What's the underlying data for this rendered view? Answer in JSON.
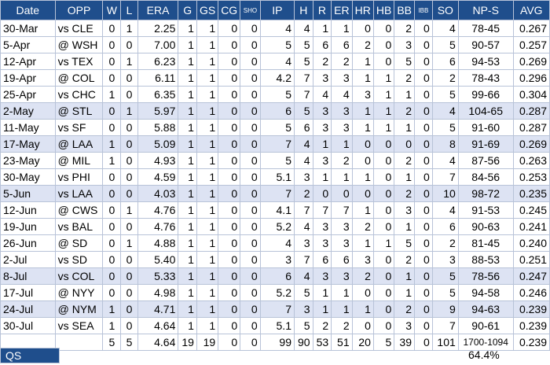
{
  "headers": [
    "Date",
    "OPP",
    "W",
    "L",
    "ERA",
    "G",
    "GS",
    "CG",
    "SHO",
    "IP",
    "H",
    "R",
    "ER",
    "HR",
    "HB",
    "BB",
    "IBB",
    "SO",
    "NP-S",
    "AVG"
  ],
  "rows": [
    {
      "hl": false,
      "cells": [
        "30-Mar",
        "vs CLE",
        "0",
        "1",
        "2.25",
        "1",
        "1",
        "0",
        "0",
        "4",
        "4",
        "1",
        "1",
        "0",
        "0",
        "2",
        "0",
        "4",
        "78-45",
        "0.267"
      ]
    },
    {
      "hl": false,
      "cells": [
        "5-Apr",
        "@ WSH",
        "0",
        "0",
        "7.00",
        "1",
        "1",
        "0",
        "0",
        "5",
        "5",
        "6",
        "2",
        "0",
        "3",
        "0",
        "5",
        "90-57",
        "0.257"
      ],
      "skip": 14
    },
    {
      "hl": false,
      "cells": [
        "12-Apr",
        "vs TEX",
        "0",
        "1",
        "6.23",
        "1",
        "1",
        "0",
        "0",
        "4",
        "5",
        "2",
        "2",
        "1",
        "0",
        "5",
        "0",
        "6",
        "94-53",
        "0.269"
      ]
    },
    {
      "hl": false,
      "cells": [
        "19-Apr",
        "@ COL",
        "0",
        "0",
        "6.11",
        "1",
        "1",
        "0",
        "0",
        "4.2",
        "7",
        "3",
        "3",
        "1",
        "1",
        "2",
        "0",
        "2",
        "78-43",
        "0.296"
      ]
    },
    {
      "hl": false,
      "cells": [
        "25-Apr",
        "vs CHC",
        "1",
        "0",
        "6.35",
        "1",
        "1",
        "0",
        "0",
        "5",
        "7",
        "4",
        "4",
        "3",
        "1",
        "1",
        "0",
        "5",
        "99-66",
        "0.304"
      ]
    },
    {
      "hl": true,
      "cells": [
        "2-May",
        "@ STL",
        "0",
        "1",
        "5.97",
        "1",
        "1",
        "0",
        "0",
        "6",
        "5",
        "3",
        "3",
        "1",
        "1",
        "2",
        "0",
        "4",
        "104-65",
        "0.287"
      ]
    },
    {
      "hl": false,
      "cells": [
        "11-May",
        "vs SF",
        "0",
        "0",
        "5.88",
        "1",
        "1",
        "0",
        "0",
        "5",
        "6",
        "3",
        "3",
        "1",
        "1",
        "1",
        "0",
        "5",
        "91-60",
        "0.287"
      ]
    },
    {
      "hl": true,
      "cells": [
        "17-May",
        "@ LAA",
        "1",
        "0",
        "5.09",
        "1",
        "1",
        "0",
        "0",
        "7",
        "4",
        "1",
        "1",
        "0",
        "0",
        "0",
        "0",
        "8",
        "91-69",
        "0.269"
      ]
    },
    {
      "hl": false,
      "cells": [
        "23-May",
        "@ MIL",
        "1",
        "0",
        "4.93",
        "1",
        "1",
        "0",
        "0",
        "5",
        "4",
        "3",
        "2",
        "0",
        "0",
        "2",
        "0",
        "4",
        "87-56",
        "0.263"
      ]
    },
    {
      "hl": false,
      "cells": [
        "30-May",
        "vs PHI",
        "0",
        "0",
        "4.59",
        "1",
        "1",
        "0",
        "0",
        "5.1",
        "3",
        "1",
        "1",
        "1",
        "0",
        "1",
        "0",
        "7",
        "84-56",
        "0.253"
      ]
    },
    {
      "hl": true,
      "cells": [
        "5-Jun",
        "vs LAA",
        "0",
        "0",
        "4.03",
        "1",
        "1",
        "0",
        "0",
        "7",
        "2",
        "0",
        "0",
        "0",
        "0",
        "2",
        "0",
        "10",
        "98-72",
        "0.235"
      ]
    },
    {
      "hl": false,
      "cells": [
        "12-Jun",
        "@ CWS",
        "0",
        "1",
        "4.76",
        "1",
        "1",
        "0",
        "0",
        "4.1",
        "7",
        "7",
        "7",
        "1",
        "0",
        "3",
        "0",
        "4",
        "91-53",
        "0.245"
      ]
    },
    {
      "hl": false,
      "cells": [
        "19-Jun",
        "vs BAL",
        "0",
        "0",
        "4.76",
        "1",
        "1",
        "0",
        "0",
        "5.2",
        "4",
        "3",
        "3",
        "2",
        "0",
        "1",
        "0",
        "6",
        "90-63",
        "0.241"
      ]
    },
    {
      "hl": false,
      "cells": [
        "26-Jun",
        "@ SD",
        "0",
        "1",
        "4.88",
        "1",
        "1",
        "0",
        "0",
        "4",
        "3",
        "3",
        "3",
        "1",
        "1",
        "5",
        "0",
        "2",
        "81-45",
        "0.240"
      ]
    },
    {
      "hl": false,
      "cells": [
        "2-Jul",
        "vs SD",
        "0",
        "0",
        "5.40",
        "1",
        "1",
        "0",
        "0",
        "3",
        "7",
        "6",
        "6",
        "3",
        "0",
        "2",
        "0",
        "3",
        "88-53",
        "0.251"
      ]
    },
    {
      "hl": true,
      "cells": [
        "8-Jul",
        "vs COL",
        "0",
        "0",
        "5.33",
        "1",
        "1",
        "0",
        "0",
        "6",
        "4",
        "3",
        "3",
        "2",
        "0",
        "1",
        "0",
        "5",
        "78-56",
        "0.247"
      ]
    },
    {
      "hl": false,
      "cells": [
        "17-Jul",
        "@ NYY",
        "0",
        "0",
        "4.98",
        "1",
        "1",
        "0",
        "0",
        "5.2",
        "5",
        "1",
        "1",
        "0",
        "0",
        "1",
        "0",
        "5",
        "94-58",
        "0.246"
      ]
    },
    {
      "hl": true,
      "cells": [
        "24-Jul",
        "@ NYM",
        "1",
        "0",
        "4.71",
        "1",
        "1",
        "0",
        "0",
        "7",
        "3",
        "1",
        "1",
        "1",
        "0",
        "2",
        "0",
        "9",
        "94-63",
        "0.239"
      ]
    },
    {
      "hl": false,
      "cells": [
        "30-Jul",
        "vs SEA",
        "1",
        "0",
        "4.64",
        "1",
        "1",
        "0",
        "0",
        "5.1",
        "5",
        "2",
        "2",
        "0",
        "0",
        "3",
        "0",
        "7",
        "90-61",
        "0.239"
      ]
    }
  ],
  "totals": [
    "",
    "",
    "5",
    "5",
    "4.64",
    "19",
    "19",
    "0",
    "0",
    "99",
    "90",
    "53",
    "51",
    "20",
    "5",
    "39",
    "0",
    "101",
    "1700-1094",
    "0.239"
  ],
  "qs": {
    "label": "QS",
    "value": "64.4%"
  }
}
